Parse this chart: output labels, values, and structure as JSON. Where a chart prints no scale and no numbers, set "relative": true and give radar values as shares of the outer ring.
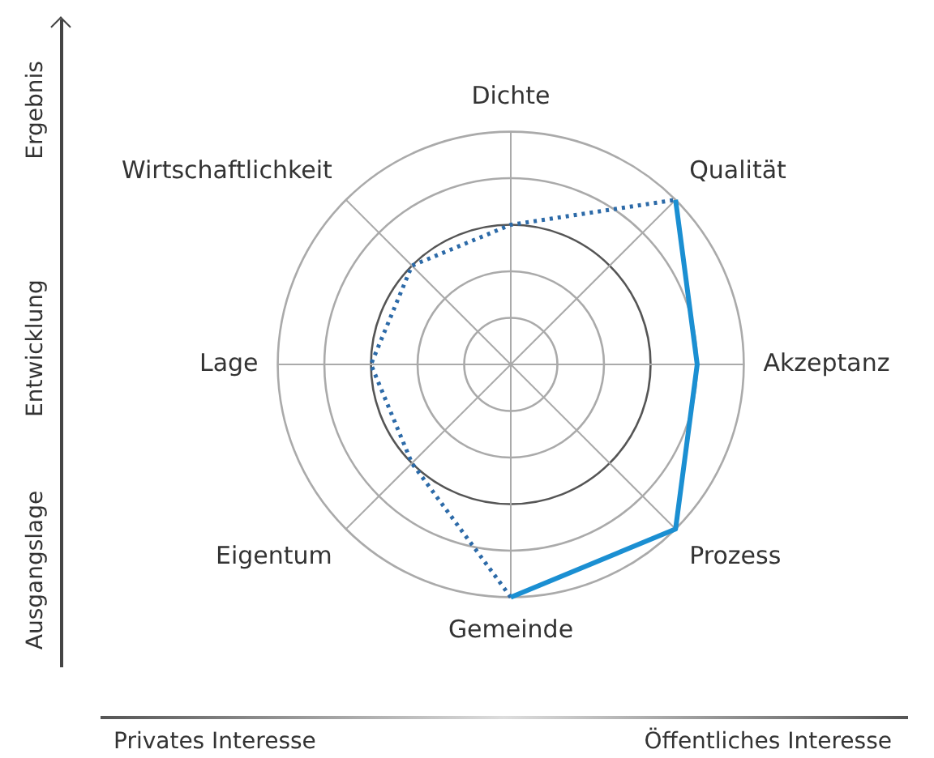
{
  "chart_data": {
    "type": "radar",
    "relative": true,
    "categories": [
      "Dichte",
      "Qualität",
      "Akzeptanz",
      "Prozess",
      "Gemeinde",
      "Eigentum",
      "Lage",
      "Wirtschaftlichkeit"
    ],
    "series": [
      {
        "color": "#1b8fd2",
        "line_style": "solid",
        "values": [
          null,
          1,
          0.8,
          1,
          1,
          null,
          null,
          null
        ]
      },
      {
        "color": "#2c6aa8",
        "line_style": "dotted",
        "values": [
          0.6,
          1,
          null,
          null,
          1,
          0.6,
          0.6,
          0.6
        ]
      }
    ],
    "marker": "none",
    "legend": false,
    "grid": true,
    "annotations": [
      "Ergebnis",
      "Entwicklung",
      "Ausgangslage",
      "Privates Interesse",
      "Öffentliches Interesse"
    ]
  }
}
